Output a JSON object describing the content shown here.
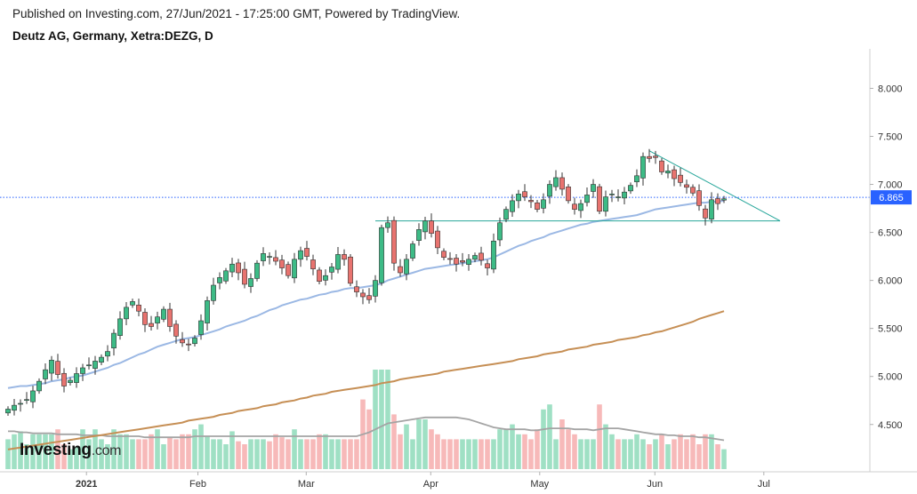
{
  "header": {
    "published": "Published on Investing.com, 27/Jun/2021 - 17:25:00 GMT, Powered by TradingView.",
    "title": "Deutz AG, Germany, Xetra:DEZG, D"
  },
  "watermark": {
    "brand": "Investing",
    "suffix": ".com"
  },
  "colors": {
    "up": "#26a69a",
    "down": "#ef5350",
    "up_fill": "#3dbb86",
    "down_fill": "#e8736f",
    "vol_up": "#9fe0c4",
    "vol_down": "#f7b9b9",
    "ma_fast": "#9bb8e4",
    "ma_slow": "#c68f55",
    "vol_ma": "#a4a4a4",
    "trendline": "#26a69a",
    "last_price": "#2962ff"
  },
  "chart_data": {
    "type": "candlestick",
    "symbol": "Xetra:DEZG",
    "interval": "D",
    "x_ticks": [
      "2021",
      "Feb",
      "Mar",
      "Apr",
      "May",
      "Jun",
      "Jul"
    ],
    "y_ticks": [
      "8.000",
      "7.500",
      "7.000",
      "6.500",
      "6.000",
      "5.500",
      "5.000",
      "4.500"
    ],
    "ylim": [
      4.1,
      8.3
    ],
    "last_price": 6.865,
    "last_price_label": "6.865",
    "closes": [
      4.66,
      4.7,
      4.72,
      4.76,
      4.85,
      4.95,
      5.07,
      5.17,
      5.02,
      4.9,
      4.96,
      5.03,
      5.09,
      5.12,
      5.16,
      5.2,
      5.26,
      5.45,
      5.6,
      5.72,
      5.78,
      5.68,
      5.54,
      5.52,
      5.62,
      5.7,
      5.52,
      5.42,
      5.35,
      5.33,
      5.4,
      5.58,
      5.79,
      5.95,
      6.03,
      6.1,
      6.17,
      6.08,
      5.96,
      6.02,
      6.18,
      6.28,
      6.25,
      6.2,
      6.13,
      6.05,
      6.22,
      6.31,
      6.25,
      6.12,
      5.99,
      6.05,
      6.14,
      6.27,
      6.22,
      5.97,
      5.88,
      5.83,
      5.8,
      6.0,
      6.55,
      6.6,
      6.18,
      6.08,
      6.22,
      6.38,
      6.53,
      6.62,
      6.49,
      6.34,
      6.24,
      6.22,
      6.17,
      6.19,
      6.22,
      6.26,
      6.21,
      6.13,
      6.41,
      6.6,
      6.74,
      6.83,
      6.9,
      6.87,
      6.82,
      6.74,
      6.84,
      7.0,
      7.07,
      6.95,
      6.83,
      6.74,
      6.8,
      6.89,
      7.0,
      6.72,
      6.87,
      6.9,
      6.87,
      6.92,
      6.99,
      7.09,
      7.29,
      7.27,
      7.28,
      7.13,
      7.14,
      7.06,
      7.02,
      6.97,
      6.91,
      6.78,
      6.65,
      6.84,
      6.8,
      6.85
    ],
    "ma_fast": [
      4.88,
      4.89,
      4.9,
      4.9,
      4.91,
      4.92,
      4.93,
      4.95,
      4.96,
      4.97,
      4.99,
      5.0,
      5.01,
      5.03,
      5.05,
      5.07,
      5.09,
      5.12,
      5.14,
      5.17,
      5.2,
      5.23,
      5.25,
      5.28,
      5.31,
      5.33,
      5.35,
      5.37,
      5.39,
      5.4,
      5.41,
      5.43,
      5.45,
      5.47,
      5.49,
      5.52,
      5.54,
      5.56,
      5.58,
      5.61,
      5.63,
      5.66,
      5.69,
      5.71,
      5.74,
      5.76,
      5.78,
      5.8,
      5.81,
      5.83,
      5.85,
      5.86,
      5.88,
      5.89,
      5.91,
      5.92,
      5.92,
      5.93,
      5.94,
      5.95,
      5.97,
      6.0,
      6.02,
      6.04,
      6.06,
      6.08,
      6.1,
      6.12,
      6.13,
      6.14,
      6.15,
      6.16,
      6.17,
      6.18,
      6.19,
      6.2,
      6.21,
      6.22,
      6.24,
      6.27,
      6.3,
      6.33,
      6.36,
      6.38,
      6.41,
      6.43,
      6.45,
      6.48,
      6.5,
      6.52,
      6.54,
      6.56,
      6.58,
      6.59,
      6.61,
      6.62,
      6.63,
      6.64,
      6.65,
      6.66,
      6.67,
      6.68,
      6.7,
      6.72,
      6.74,
      6.75,
      6.76,
      6.77,
      6.78,
      6.79,
      6.8,
      6.81,
      6.81,
      6.82,
      6.82,
      6.83
    ],
    "ma_slow": [
      4.24,
      4.25,
      4.26,
      4.27,
      4.28,
      4.29,
      4.3,
      4.31,
      4.32,
      4.33,
      4.34,
      4.35,
      4.36,
      4.37,
      4.38,
      4.39,
      4.4,
      4.41,
      4.42,
      4.43,
      4.44,
      4.45,
      4.46,
      4.47,
      4.48,
      4.49,
      4.5,
      4.51,
      4.52,
      4.54,
      4.55,
      4.56,
      4.57,
      4.58,
      4.6,
      4.61,
      4.62,
      4.64,
      4.65,
      4.66,
      4.67,
      4.69,
      4.7,
      4.71,
      4.73,
      4.74,
      4.75,
      4.77,
      4.78,
      4.8,
      4.81,
      4.82,
      4.84,
      4.85,
      4.86,
      4.87,
      4.88,
      4.89,
      4.9,
      4.91,
      4.93,
      4.94,
      4.95,
      4.97,
      4.98,
      4.99,
      5.0,
      5.01,
      5.02,
      5.03,
      5.05,
      5.06,
      5.07,
      5.08,
      5.09,
      5.1,
      5.11,
      5.12,
      5.13,
      5.14,
      5.15,
      5.16,
      5.18,
      5.19,
      5.2,
      5.21,
      5.23,
      5.24,
      5.25,
      5.26,
      5.28,
      5.29,
      5.3,
      5.31,
      5.33,
      5.34,
      5.35,
      5.36,
      5.38,
      5.39,
      5.4,
      5.41,
      5.43,
      5.44,
      5.46,
      5.47,
      5.49,
      5.51,
      5.53,
      5.55,
      5.57,
      5.6,
      5.62,
      5.64,
      5.66,
      5.68
    ],
    "volume_relative": [
      0.3,
      0.35,
      0.38,
      0.25,
      0.35,
      0.35,
      0.35,
      0.35,
      0.4,
      0.25,
      0.2,
      0.22,
      0.4,
      0.3,
      0.4,
      0.3,
      0.25,
      0.4,
      0.35,
      0.35,
      0.3,
      0.3,
      0.3,
      0.35,
      0.4,
      0.25,
      0.32,
      0.3,
      0.35,
      0.35,
      0.4,
      0.45,
      0.33,
      0.3,
      0.3,
      0.25,
      0.38,
      0.28,
      0.25,
      0.3,
      0.3,
      0.3,
      0.28,
      0.35,
      0.32,
      0.3,
      0.4,
      0.3,
      0.3,
      0.3,
      0.35,
      0.35,
      0.3,
      0.3,
      0.3,
      0.3,
      0.3,
      0.7,
      0.6,
      1.0,
      1.0,
      1.0,
      0.55,
      0.35,
      0.45,
      0.3,
      0.5,
      0.5,
      0.4,
      0.35,
      0.3,
      0.3,
      0.3,
      0.3,
      0.3,
      0.3,
      0.3,
      0.3,
      0.3,
      0.4,
      0.4,
      0.45,
      0.35,
      0.35,
      0.3,
      0.4,
      0.6,
      0.65,
      0.3,
      0.5,
      0.4,
      0.35,
      0.3,
      0.3,
      0.3,
      0.65,
      0.45,
      0.35,
      0.3,
      0.3,
      0.3,
      0.35,
      0.3,
      0.25,
      0.3,
      0.35,
      0.25,
      0.3,
      0.35,
      0.3,
      0.35,
      0.25,
      0.35,
      0.35,
      0.25,
      0.2
    ],
    "volume_ma_relative": [
      0.38,
      0.38,
      0.37,
      0.37,
      0.36,
      0.36,
      0.36,
      0.36,
      0.35,
      0.35,
      0.35,
      0.35,
      0.34,
      0.34,
      0.34,
      0.34,
      0.33,
      0.33,
      0.33,
      0.33,
      0.33,
      0.33,
      0.32,
      0.32,
      0.32,
      0.32,
      0.32,
      0.32,
      0.32,
      0.32,
      0.33,
      0.33,
      0.33,
      0.33,
      0.33,
      0.33,
      0.33,
      0.33,
      0.33,
      0.33,
      0.33,
      0.33,
      0.33,
      0.33,
      0.33,
      0.33,
      0.33,
      0.33,
      0.33,
      0.33,
      0.33,
      0.33,
      0.33,
      0.33,
      0.33,
      0.33,
      0.33,
      0.35,
      0.37,
      0.4,
      0.43,
      0.46,
      0.47,
      0.48,
      0.49,
      0.5,
      0.51,
      0.52,
      0.52,
      0.52,
      0.52,
      0.52,
      0.52,
      0.51,
      0.5,
      0.48,
      0.46,
      0.44,
      0.42,
      0.41,
      0.4,
      0.4,
      0.4,
      0.4,
      0.39,
      0.39,
      0.4,
      0.41,
      0.41,
      0.41,
      0.41,
      0.4,
      0.4,
      0.4,
      0.39,
      0.4,
      0.41,
      0.41,
      0.41,
      0.4,
      0.39,
      0.38,
      0.37,
      0.36,
      0.35,
      0.35,
      0.34,
      0.34,
      0.33,
      0.33,
      0.33,
      0.32,
      0.32,
      0.31,
      0.3,
      0.29
    ],
    "horizontal_level": 6.62,
    "trendline": {
      "from": 7.35,
      "to": 6.62
    }
  }
}
